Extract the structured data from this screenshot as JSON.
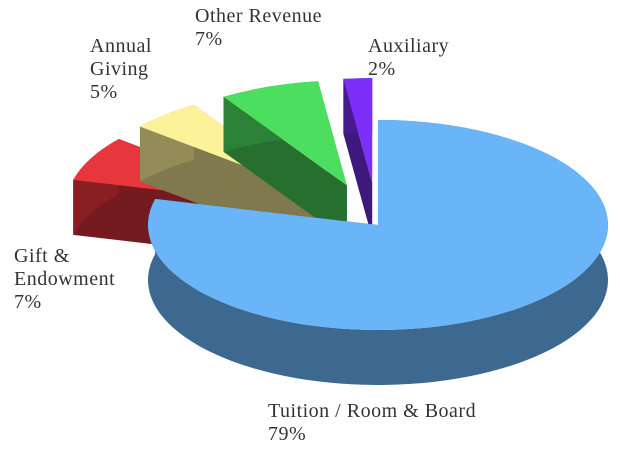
{
  "chart_data": {
    "type": "pie",
    "categories": [
      "Tuition / Room & Board",
      "Gift & Endowment",
      "Annual Giving",
      "Other Revenue",
      "Auxiliary"
    ],
    "values": [
      79,
      7,
      5,
      7,
      2
    ],
    "value_labels": [
      "79%",
      "7%",
      "5%",
      "7%",
      "2%"
    ],
    "colors": [
      "#6ab4f8",
      "#e8363d",
      "#fdf29a",
      "#4cde5e",
      "#7b2ff7"
    ]
  }
}
